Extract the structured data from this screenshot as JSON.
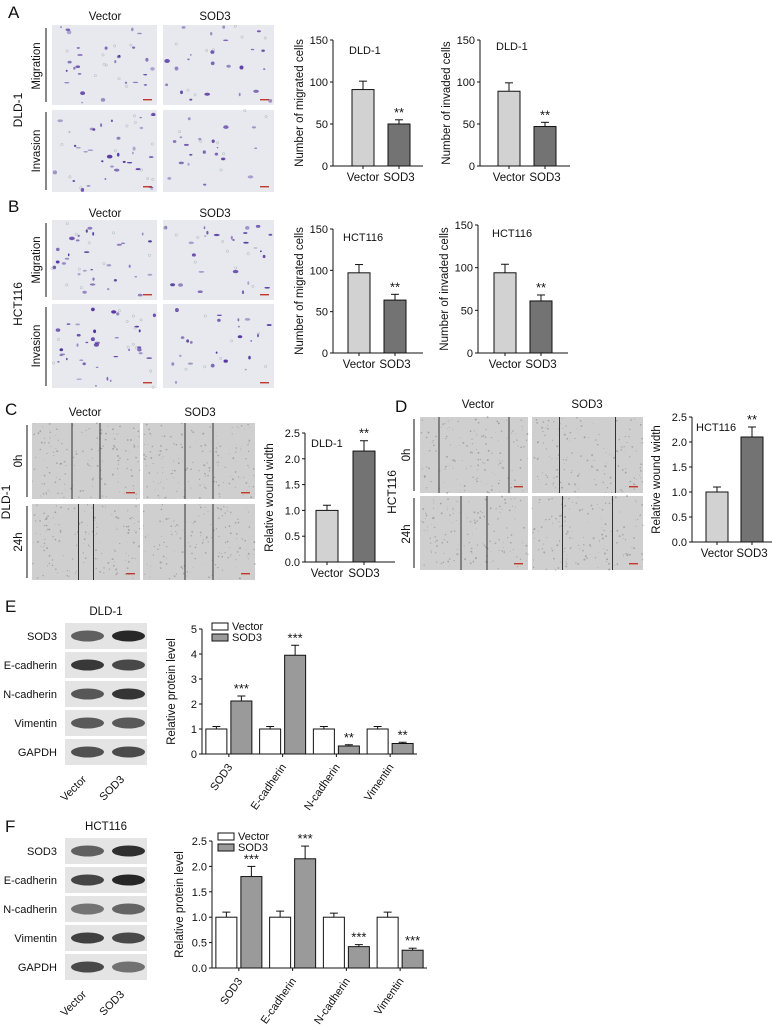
{
  "panels": {
    "A": {
      "letter": "A",
      "cell_line": "DLD-1",
      "col_labels": [
        "Vector",
        "SOD3"
      ],
      "row_labels": [
        "Migration",
        "Invasion"
      ],
      "charts": [
        {
          "title": "DLD-1",
          "ylabel": "Number of migrated cells",
          "categories": [
            "Vector",
            "SOD3"
          ],
          "values": [
            91,
            50
          ],
          "errors": [
            10,
            5
          ],
          "ylim": [
            0,
            150
          ],
          "yticks": [
            0,
            50,
            100,
            150
          ],
          "significance": [
            "",
            "**"
          ]
        },
        {
          "title": "DLD-1",
          "ylabel": "Number of invaded cells",
          "categories": [
            "Vector",
            "SOD3"
          ],
          "values": [
            89,
            47
          ],
          "errors": [
            10,
            5
          ],
          "ylim": [
            0,
            150
          ],
          "yticks": [
            0,
            50,
            100,
            150
          ],
          "significance": [
            "",
            "**"
          ]
        }
      ]
    },
    "B": {
      "letter": "B",
      "cell_line": "HCT116",
      "col_labels": [
        "Vector",
        "SOD3"
      ],
      "row_labels": [
        "Migration",
        "Invasion"
      ],
      "charts": [
        {
          "title": "HCT116",
          "ylabel": "Number of migrated cells",
          "categories": [
            "Vector",
            "SOD3"
          ],
          "values": [
            97,
            64
          ],
          "errors": [
            10,
            7
          ],
          "ylim": [
            0,
            150
          ],
          "yticks": [
            0,
            50,
            100,
            150
          ],
          "significance": [
            "",
            "**"
          ]
        },
        {
          "title": "HCT116",
          "ylabel": "Number of invaded cells",
          "categories": [
            "Vector",
            "SOD3"
          ],
          "values": [
            94,
            61
          ],
          "errors": [
            10,
            7
          ],
          "ylim": [
            0,
            150
          ],
          "yticks": [
            0,
            50,
            100,
            150
          ],
          "significance": [
            "",
            "**"
          ]
        }
      ]
    },
    "C": {
      "letter": "C",
      "cell_line": "DLD-1",
      "col_labels": [
        "Vector",
        "SOD3"
      ],
      "row_labels": [
        "0h",
        "24h"
      ],
      "charts": [
        {
          "title": "DLD-1",
          "ylabel": "Relative wound width",
          "categories": [
            "Vector",
            "SOD3"
          ],
          "values": [
            1.0,
            2.15
          ],
          "errors": [
            0.1,
            0.2
          ],
          "ylim": [
            0,
            2.5
          ],
          "yticks": [
            0.0,
            0.5,
            1.0,
            1.5,
            2.0,
            2.5
          ],
          "significance": [
            "",
            "**"
          ]
        }
      ]
    },
    "D": {
      "letter": "D",
      "cell_line": "HCT116",
      "col_labels": [
        "Vector",
        "SOD3"
      ],
      "row_labels": [
        "0h",
        "24h"
      ],
      "charts": [
        {
          "title": "HCT116",
          "ylabel": "Relative wound width",
          "categories": [
            "Vector",
            "SOD3"
          ],
          "values": [
            1.0,
            2.1
          ],
          "errors": [
            0.1,
            0.2
          ],
          "ylim": [
            0,
            2.5
          ],
          "yticks": [
            0.0,
            0.5,
            1.0,
            1.5,
            2.0,
            2.5
          ],
          "significance": [
            "",
            "**"
          ]
        }
      ]
    },
    "E": {
      "letter": "E",
      "cell_line": "DLD-1",
      "blot_labels": [
        "SOD3",
        "E-cadherin",
        "N-cadherin",
        "Vimentin",
        "GAPDH"
      ],
      "lane_labels": [
        "Vector",
        "SOD3"
      ],
      "chart": {
        "ylabel": "Relative protein level",
        "categories": [
          "SOD3",
          "E-cadherin",
          "N-cadherin",
          "Vimentin"
        ],
        "series": [
          {
            "name": "Vector",
            "values": [
              1.0,
              1.0,
              1.0,
              1.0
            ],
            "errors": [
              0.1,
              0.1,
              0.1,
              0.1
            ],
            "significance": [
              "",
              "",
              "",
              ""
            ]
          },
          {
            "name": "SOD3",
            "values": [
              2.12,
              3.95,
              0.32,
              0.42
            ],
            "errors": [
              0.2,
              0.4,
              0.05,
              0.05
            ],
            "significance": [
              "***",
              "***",
              "**",
              "**"
            ]
          }
        ],
        "ylim": [
          0,
          5
        ],
        "yticks": [
          0,
          1,
          2,
          3,
          4,
          5
        ]
      }
    },
    "F": {
      "letter": "F",
      "cell_line": "HCT116",
      "blot_labels": [
        "SOD3",
        "E-cadherin",
        "N-cadherin",
        "Vimentin",
        "GAPDH"
      ],
      "lane_labels": [
        "Vector",
        "SOD3"
      ],
      "chart": {
        "ylabel": "Relative protein level",
        "categories": [
          "SOD3",
          "E-cadherin",
          "N-cadherin",
          "Vimentin"
        ],
        "series": [
          {
            "name": "Vector",
            "values": [
              1.0,
              1.0,
              1.0,
              1.0
            ],
            "errors": [
              0.1,
              0.12,
              0.08,
              0.1
            ],
            "significance": [
              "",
              "",
              "",
              ""
            ]
          },
          {
            "name": "SOD3",
            "values": [
              1.8,
              2.15,
              0.42,
              0.35
            ],
            "errors": [
              0.2,
              0.25,
              0.04,
              0.04
            ],
            "significance": [
              "***",
              "***",
              "***",
              "***"
            ]
          }
        ],
        "ylim": [
          0,
          2.5
        ],
        "yticks": [
          0.0,
          0.5,
          1.0,
          1.5,
          2.0,
          2.5
        ]
      }
    }
  },
  "chart_data": [
    {
      "type": "bar",
      "panel": "A",
      "title": "DLD-1",
      "xlabel": "",
      "ylabel": "Number of migrated cells",
      "categories": [
        "Vector",
        "SOD3"
      ],
      "values": [
        91,
        50
      ],
      "ylim": [
        0,
        150
      ]
    },
    {
      "type": "bar",
      "panel": "A",
      "title": "DLD-1",
      "xlabel": "",
      "ylabel": "Number of invaded cells",
      "categories": [
        "Vector",
        "SOD3"
      ],
      "values": [
        89,
        47
      ],
      "ylim": [
        0,
        150
      ]
    },
    {
      "type": "bar",
      "panel": "B",
      "title": "HCT116",
      "xlabel": "",
      "ylabel": "Number of migrated cells",
      "categories": [
        "Vector",
        "SOD3"
      ],
      "values": [
        97,
        64
      ],
      "ylim": [
        0,
        150
      ]
    },
    {
      "type": "bar",
      "panel": "B",
      "title": "HCT116",
      "xlabel": "",
      "ylabel": "Number of invaded cells",
      "categories": [
        "Vector",
        "SOD3"
      ],
      "values": [
        94,
        61
      ],
      "ylim": [
        0,
        150
      ]
    },
    {
      "type": "bar",
      "panel": "C",
      "title": "DLD-1",
      "xlabel": "",
      "ylabel": "Relative wound width",
      "categories": [
        "Vector",
        "SOD3"
      ],
      "values": [
        1.0,
        2.15
      ],
      "ylim": [
        0,
        2.5
      ]
    },
    {
      "type": "bar",
      "panel": "D",
      "title": "HCT116",
      "xlabel": "",
      "ylabel": "Relative wound width",
      "categories": [
        "Vector",
        "SOD3"
      ],
      "values": [
        1.0,
        2.1
      ],
      "ylim": [
        0,
        2.5
      ]
    },
    {
      "type": "bar",
      "panel": "E",
      "title": "",
      "xlabel": "",
      "ylabel": "Relative protein level",
      "categories": [
        "SOD3",
        "E-cadherin",
        "N-cadherin",
        "Vimentin"
      ],
      "series": [
        {
          "name": "Vector",
          "values": [
            1.0,
            1.0,
            1.0,
            1.0
          ]
        },
        {
          "name": "SOD3",
          "values": [
            2.12,
            3.95,
            0.32,
            0.42
          ]
        }
      ],
      "ylim": [
        0,
        5
      ],
      "legend": "top-left"
    },
    {
      "type": "bar",
      "panel": "F",
      "title": "",
      "xlabel": "",
      "ylabel": "Relative protein level",
      "categories": [
        "SOD3",
        "E-cadherin",
        "N-cadherin",
        "Vimentin"
      ],
      "series": [
        {
          "name": "Vector",
          "values": [
            1.0,
            1.0,
            1.0,
            1.0
          ]
        },
        {
          "name": "SOD3",
          "values": [
            1.8,
            2.15,
            0.42,
            0.35
          ]
        }
      ],
      "ylim": [
        0,
        2.5
      ],
      "legend": "top-left"
    }
  ],
  "colors": {
    "vector_bar": "#d2d2d2",
    "sod3_bar": "#737373",
    "stain": "#4b2a9a",
    "transwell_bg": "#e7e9ee",
    "wound_bg": "#cfcfcf",
    "scale_bar": "#c0392b",
    "blot_bg": "#e4e4e4",
    "band": "#202020",
    "group_vector": "#ffffff",
    "group_sod3": "#9a9a9a"
  }
}
